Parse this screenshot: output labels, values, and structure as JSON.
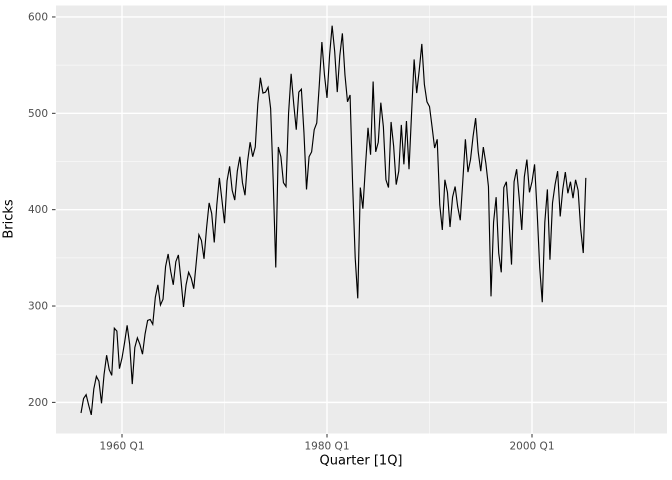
{
  "chart_data": {
    "type": "line",
    "title": "",
    "xlabel": "Quarter [1Q]",
    "ylabel": "Bricks",
    "legend": "none",
    "grid": "on",
    "panel_bg": "#EBEBEB",
    "grid_color": "#FFFFFF",
    "line_color": "#000000",
    "tick_label_color": "#4D4D4D",
    "tick_mark_color": "#333333",
    "x_unit": "quarter-years",
    "x_start": 1956.0,
    "x_step": 0.25,
    "xlim": [
      1953.56,
      2013.17
    ],
    "ylim": [
      167.7,
      611.9
    ],
    "x_ticks": [
      {
        "label": "1960 Q1",
        "value": 1960.0
      },
      {
        "label": "1980 Q1",
        "value": 1980.0
      },
      {
        "label": "2000 Q1",
        "value": 2000.0
      }
    ],
    "x_minor_ticks": [
      1970.0,
      1990.0,
      2010.0
    ],
    "y_ticks": [
      {
        "label": "200",
        "value": 200
      },
      {
        "label": "300",
        "value": 300
      },
      {
        "label": "400",
        "value": 400
      },
      {
        "label": "500",
        "value": 500
      },
      {
        "label": "600",
        "value": 600
      }
    ],
    "y_minor_ticks": [
      250,
      350,
      450,
      550
    ],
    "series": [
      {
        "name": "Bricks",
        "values": [
          189,
          204,
          208,
          197,
          187,
          214,
          227,
          222,
          199,
          229,
          249,
          234,
          228,
          277,
          274,
          235,
          246,
          262,
          280,
          260,
          219,
          257,
          267,
          260,
          250,
          271,
          285,
          286,
          281,
          309,
          322,
          301,
          307,
          341,
          354,
          336,
          322,
          346,
          353,
          327,
          299,
          322,
          335,
          329,
          318,
          346,
          374,
          368,
          349,
          381,
          407,
          396,
          366,
          405,
          433,
          410,
          386,
          430,
          445,
          420,
          410,
          440,
          455,
          428,
          415,
          450,
          470,
          455,
          465,
          510,
          537,
          521,
          522,
          527,
          505,
          430,
          340,
          465,
          455,
          428,
          424,
          500,
          541,
          510,
          483,
          522,
          525,
          480,
          421,
          455,
          460,
          483,
          490,
          530,
          574,
          540,
          516,
          560,
          591,
          564,
          522,
          560,
          583,
          540,
          512,
          519,
          426,
          350,
          308,
          423,
          401,
          445,
          485,
          457,
          533,
          460,
          470,
          511,
          486,
          431,
          423,
          491,
          466,
          426,
          440,
          488,
          447,
          492,
          442,
          500,
          556,
          521,
          545,
          572,
          530,
          512,
          507,
          486,
          464,
          473,
          405,
          379,
          431,
          418,
          382,
          413,
          424,
          403,
          389,
          430,
          473,
          439,
          452,
          476,
          495,
          460,
          440,
          465,
          448,
          424,
          310,
          387,
          413,
          355,
          335,
          423,
          429,
          390,
          343,
          429,
          442,
          412,
          379,
          434,
          452,
          418,
          429,
          447,
          398,
          340,
          304,
          387,
          421,
          348,
          407,
          426,
          440,
          393,
          421,
          439,
          417,
          429,
          412,
          431,
          420,
          380,
          355,
          433
        ]
      }
    ]
  }
}
